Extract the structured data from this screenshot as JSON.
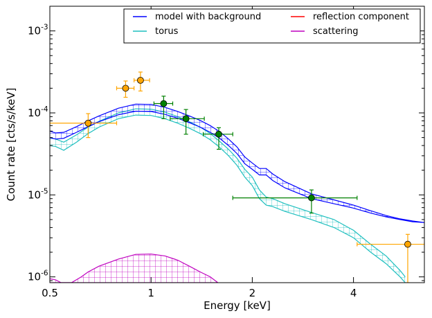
{
  "chart_data": {
    "type": "line",
    "xlabel": "Energy [keV]",
    "ylabel": "Count rate [cts/s/keV]",
    "x_scale": "log",
    "y_scale": "log",
    "xlim": [
      0.5,
      6.5
    ],
    "ylim": [
      8.5e-07,
      0.002
    ],
    "legend_position": "top-right",
    "legend_columns": 2,
    "x_ticks": [
      {
        "value": 0.5,
        "label": "0.5"
      },
      {
        "value": 1,
        "label": "1"
      },
      {
        "value": 2,
        "label": "2"
      },
      {
        "value": 4,
        "label": "4"
      }
    ],
    "y_ticks": [
      {
        "value": 1e-06,
        "base": "10",
        "exp": "-6"
      },
      {
        "value": 1e-05,
        "base": "10",
        "exp": "-5"
      },
      {
        "value": 0.0001,
        "base": "10",
        "exp": "-4"
      },
      {
        "value": 0.001,
        "base": "10",
        "exp": "-3"
      }
    ],
    "series": [
      {
        "name": "model with background",
        "color": "#0000ff",
        "hatch": "grid",
        "x": [
          0.5,
          0.52,
          0.55,
          0.6,
          0.65,
          0.7,
          0.8,
          0.9,
          1.0,
          1.1,
          1.2,
          1.3,
          1.4,
          1.5,
          1.6,
          1.7,
          1.8,
          1.9,
          2.0,
          2.1,
          2.2,
          2.3,
          2.5,
          3.0,
          3.5,
          4.0,
          4.5,
          5.0,
          5.5,
          6.0,
          6.5
        ],
        "lower": [
          5e-05,
          4.8e-05,
          4.9e-05,
          5.8e-05,
          6.8e-05,
          7.8e-05,
          9.5e-05,
          0.000105,
          0.000104,
          9.6e-05,
          8.6e-05,
          7.6e-05,
          6.7e-05,
          5.8e-05,
          4.9e-05,
          4e-05,
          3.2e-05,
          2.4e-05,
          2.05e-05,
          1.75e-05,
          1.75e-05,
          1.5e-05,
          1.22e-05,
          9e-06,
          7.8e-06,
          6.9e-06,
          6e-06,
          5.4e-06,
          5e-06,
          4.7e-06,
          4.6e-06
        ],
        "upper": [
          6e-05,
          5.7e-05,
          5.8e-05,
          6.8e-05,
          8e-05,
          9.2e-05,
          0.000114,
          0.000128,
          0.000127,
          0.000117,
          0.000104,
          9.2e-05,
          8.1e-05,
          7e-05,
          5.9e-05,
          4.8e-05,
          3.85e-05,
          2.9e-05,
          2.45e-05,
          2.1e-05,
          2.1e-05,
          1.8e-05,
          1.45e-05,
          1.03e-05,
          8.7e-06,
          7.5e-06,
          6.4e-06,
          5.6e-06,
          5.1e-06,
          4.8e-06,
          4.6e-06
        ]
      },
      {
        "name": "torus",
        "color": "#1fbfbf",
        "hatch": "grid",
        "x": [
          0.5,
          0.52,
          0.55,
          0.6,
          0.65,
          0.7,
          0.8,
          0.9,
          1.0,
          1.1,
          1.2,
          1.3,
          1.4,
          1.5,
          1.6,
          1.7,
          1.8,
          1.9,
          2.0,
          2.1,
          2.2,
          2.3,
          2.5,
          3.0,
          3.5,
          4.0,
          4.5,
          5.0,
          5.5,
          5.7
        ],
        "lower": [
          4e-05,
          3.9e-05,
          3.5e-05,
          4.4e-05,
          5.6e-05,
          6.7e-05,
          8.5e-05,
          9.4e-05,
          9.3e-05,
          8.5e-05,
          7.5e-05,
          6.5e-05,
          5.6e-05,
          4.7e-05,
          3.8e-05,
          3e-05,
          2.3e-05,
          1.65e-05,
          1.3e-05,
          9e-06,
          7.5e-06,
          7.2e-06,
          6.3e-06,
          5e-06,
          4e-06,
          3e-06,
          2e-06,
          1.45e-06,
          1e-06,
          8.5e-07
        ],
        "upper": [
          5e-05,
          4.8e-05,
          4.4e-05,
          5.4e-05,
          6.7e-05,
          7.9e-05,
          0.0001,
          0.000112,
          0.000111,
          0.000102,
          9e-05,
          7.8e-05,
          6.7e-05,
          5.6e-05,
          4.5e-05,
          3.6e-05,
          2.8e-05,
          2.05e-05,
          1.65e-05,
          1.15e-05,
          9.4e-06,
          9e-06,
          7.8e-06,
          6.1e-06,
          5e-06,
          3.7e-06,
          2.5e-06,
          1.8e-06,
          1.2e-06,
          1e-06
        ]
      },
      {
        "name": "reflection component",
        "color": "#ff0000",
        "hatch": "none",
        "x": [],
        "lower": [],
        "upper": []
      },
      {
        "name": "scattering",
        "color": "#bf00bf",
        "hatch": "grid",
        "x": [
          0.5,
          0.52,
          0.54,
          0.58,
          0.62,
          0.65,
          0.7,
          0.8,
          0.9,
          1.0,
          1.1,
          1.2,
          1.3,
          1.4,
          1.5,
          1.58
        ],
        "lower": [
          8.5e-07,
          8.5e-07,
          8.5e-07,
          8.5e-07,
          8.5e-07,
          8.5e-07,
          8.5e-07,
          8.5e-07,
          8.5e-07,
          8.5e-07,
          8.5e-07,
          8.5e-07,
          8.5e-07,
          8.5e-07,
          8.5e-07,
          8.5e-07
        ],
        "upper": [
          9.5e-07,
          9.2e-07,
          8.5e-07,
          8.5e-07,
          1e-06,
          1.15e-06,
          1.35e-06,
          1.65e-06,
          1.88e-06,
          1.9e-06,
          1.8e-06,
          1.6e-06,
          1.35e-06,
          1.15e-06,
          1e-06,
          8.5e-07
        ]
      }
    ],
    "data_points": [
      {
        "group": "orange",
        "color": "#ffa500",
        "x": 0.65,
        "y": 7.5e-05,
        "xerr": [
          0.5,
          0.79
        ],
        "yerr": [
          5e-05,
          9.8e-05
        ]
      },
      {
        "group": "orange",
        "color": "#ffa500",
        "x": 0.84,
        "y": 0.0002,
        "xerr": [
          0.79,
          0.89
        ],
        "yerr": [
          0.000155,
          0.000245
        ]
      },
      {
        "group": "orange",
        "color": "#ffa500",
        "x": 0.93,
        "y": 0.00025,
        "xerr": [
          0.89,
          0.99
        ],
        "yerr": [
          0.000185,
          0.000315
        ]
      },
      {
        "group": "orange",
        "color": "#ffa500",
        "x": 5.8,
        "y": 2.5e-06,
        "xerr": [
          4.1,
          6.5
        ],
        "yerr": [
          8.5e-07,
          3.3e-06
        ]
      },
      {
        "group": "green",
        "color": "#008000",
        "x": 1.09,
        "y": 0.00013,
        "xerr": [
          1.02,
          1.16
        ],
        "yerr": [
          8.5e-05,
          0.00016
        ]
      },
      {
        "group": "green",
        "color": "#008000",
        "x": 1.27,
        "y": 8.5e-05,
        "xerr": [
          1.14,
          1.44
        ],
        "yerr": [
          5.5e-05,
          0.00011
        ]
      },
      {
        "group": "green",
        "color": "#008000",
        "x": 1.59,
        "y": 5.5e-05,
        "xerr": [
          1.43,
          1.75
        ],
        "yerr": [
          3.6e-05,
          6.6e-05
        ]
      },
      {
        "group": "green",
        "color": "#008000",
        "x": 3.0,
        "y": 9.2e-06,
        "xerr": [
          1.75,
          4.1
        ],
        "yerr": [
          6e-06,
          1.15e-05
        ]
      }
    ]
  }
}
